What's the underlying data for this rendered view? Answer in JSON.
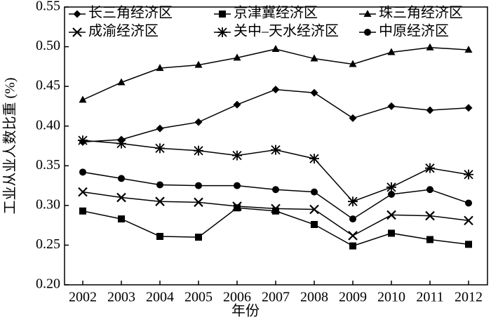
{
  "chart_data": {
    "type": "line",
    "xlabel": "年份",
    "ylabel": "工业从业人数比重 (%)",
    "categories": [
      "2002",
      "2003",
      "2004",
      "2005",
      "2006",
      "2007",
      "2008",
      "2009",
      "2010",
      "2011",
      "2012"
    ],
    "ylim": [
      0.2,
      0.55
    ],
    "yticks": [
      {
        "value": 0.2,
        "label": "0.20"
      },
      {
        "value": 0.25,
        "label": "0.25"
      },
      {
        "value": 0.3,
        "label": "0.30"
      },
      {
        "value": 0.35,
        "label": "0.35"
      },
      {
        "value": 0.4,
        "label": "0.40"
      },
      {
        "value": 0.45,
        "label": "0.45"
      },
      {
        "value": 0.5,
        "label": "0.50"
      },
      {
        "value": 0.55,
        "label": "0.55"
      }
    ],
    "grid": false,
    "legend": "top",
    "series": [
      {
        "name": "长三角经济区",
        "color": "#000000",
        "marker": "diamond",
        "values": [
          0.38,
          0.383,
          0.397,
          0.405,
          0.427,
          0.446,
          0.442,
          0.41,
          0.425,
          0.42,
          0.423
        ]
      },
      {
        "name": "京津冀经济区",
        "color": "#000000",
        "marker": "square",
        "values": [
          0.293,
          0.283,
          0.261,
          0.26,
          0.297,
          0.293,
          0.276,
          0.249,
          0.265,
          0.257,
          0.251
        ]
      },
      {
        "name": "珠三角经济区",
        "color": "#000000",
        "marker": "triangle",
        "values": [
          0.433,
          0.455,
          0.473,
          0.477,
          0.486,
          0.497,
          0.485,
          0.478,
          0.493,
          0.499,
          0.496
        ]
      },
      {
        "name": "成渝经济区",
        "color": "#000000",
        "marker": "x",
        "values": [
          0.317,
          0.31,
          0.305,
          0.304,
          0.299,
          0.296,
          0.295,
          0.262,
          0.288,
          0.287,
          0.281
        ]
      },
      {
        "name": "关中–天水经济区",
        "color": "#000000",
        "marker": "star",
        "values": [
          0.382,
          0.378,
          0.372,
          0.369,
          0.363,
          0.37,
          0.359,
          0.305,
          0.323,
          0.347,
          0.339
        ]
      },
      {
        "name": "中原经济区",
        "color": "#000000",
        "marker": "circle",
        "values": [
          0.342,
          0.334,
          0.326,
          0.325,
          0.325,
          0.32,
          0.317,
          0.283,
          0.314,
          0.32,
          0.303
        ]
      }
    ]
  }
}
